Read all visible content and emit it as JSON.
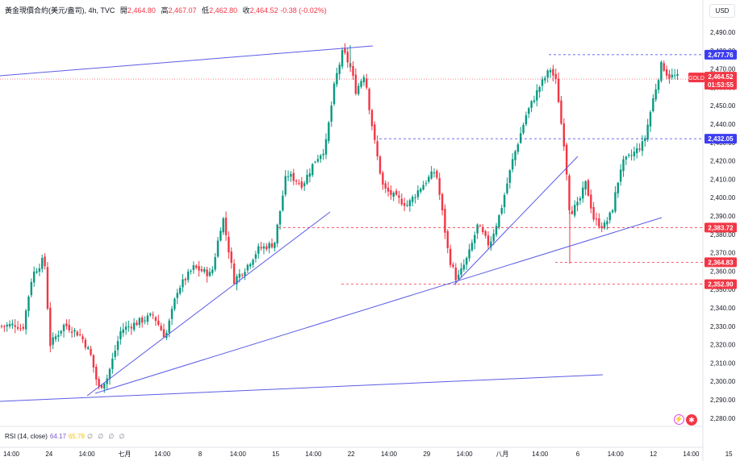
{
  "header": {
    "symbol": "黃金現價合約(美元/盎司)",
    "interval": "4h",
    "source": "TVC",
    "open_label": "開",
    "open": "2,464.80",
    "high_label": "高",
    "high": "2,467.07",
    "low_label": "低",
    "low": "2,462.80",
    "close_label": "收",
    "close": "2,464.52",
    "change": "-0.38 (-0.02%)"
  },
  "currency_button": "USD",
  "price_axis": {
    "ticks": [
      "2,490.00",
      "2,480.00",
      "2,470.00",
      "2,460.00",
      "2,450.00",
      "2,440.00",
      "2,430.00",
      "2,420.00",
      "2,410.00",
      "2,400.00",
      "2,390.00",
      "2,380.00",
      "2,370.00",
      "2,360.00",
      "2,350.00",
      "2,340.00",
      "2,330.00",
      "2,320.00",
      "2,310.00",
      "2,300.00",
      "2,290.00",
      "2,280.00"
    ]
  },
  "time_axis": {
    "ticks": [
      "14:00",
      "24",
      "14:00",
      "七月",
      "14:00",
      "8",
      "14:00",
      "15",
      "14:00",
      "22",
      "14:00",
      "29",
      "14:00",
      "八月",
      "14:00",
      "6",
      "14:00",
      "12",
      "14:00",
      "15"
    ]
  },
  "price_labels": [
    {
      "text": "2,477.76",
      "kind": "blue"
    },
    {
      "text": "2,464.52",
      "kind": "red"
    },
    {
      "text": "01:53:55",
      "kind": "red"
    },
    {
      "text": "2,432.05",
      "kind": "blue"
    },
    {
      "text": "2,383.72",
      "kind": "red"
    },
    {
      "text": "2,364.83",
      "kind": "red"
    },
    {
      "text": "2,352.90",
      "kind": "red"
    }
  ],
  "symbol_tag": "GOLD",
  "rsi": {
    "label": "RSI (14, close)",
    "value1": "64.17",
    "value2": "65.78",
    "placeholders": "∅ ∅ ∅ ∅"
  },
  "colors": {
    "up": "#089981",
    "down": "#f23645",
    "trendline": "#5b5be6",
    "level_blue": "#3d3df0",
    "level_red": "#f23645"
  },
  "chart_data": {
    "type": "candlestick",
    "ylim": [
      2277,
      2497
    ],
    "levels": [
      {
        "price": 2477.76,
        "color": "blue"
      },
      {
        "price": 2432.05,
        "color": "blue"
      },
      {
        "price": 2383.72,
        "color": "red"
      },
      {
        "price": 2364.83,
        "color": "red"
      },
      {
        "price": 2352.9,
        "color": "red"
      }
    ],
    "last_price": 2464.52
  }
}
